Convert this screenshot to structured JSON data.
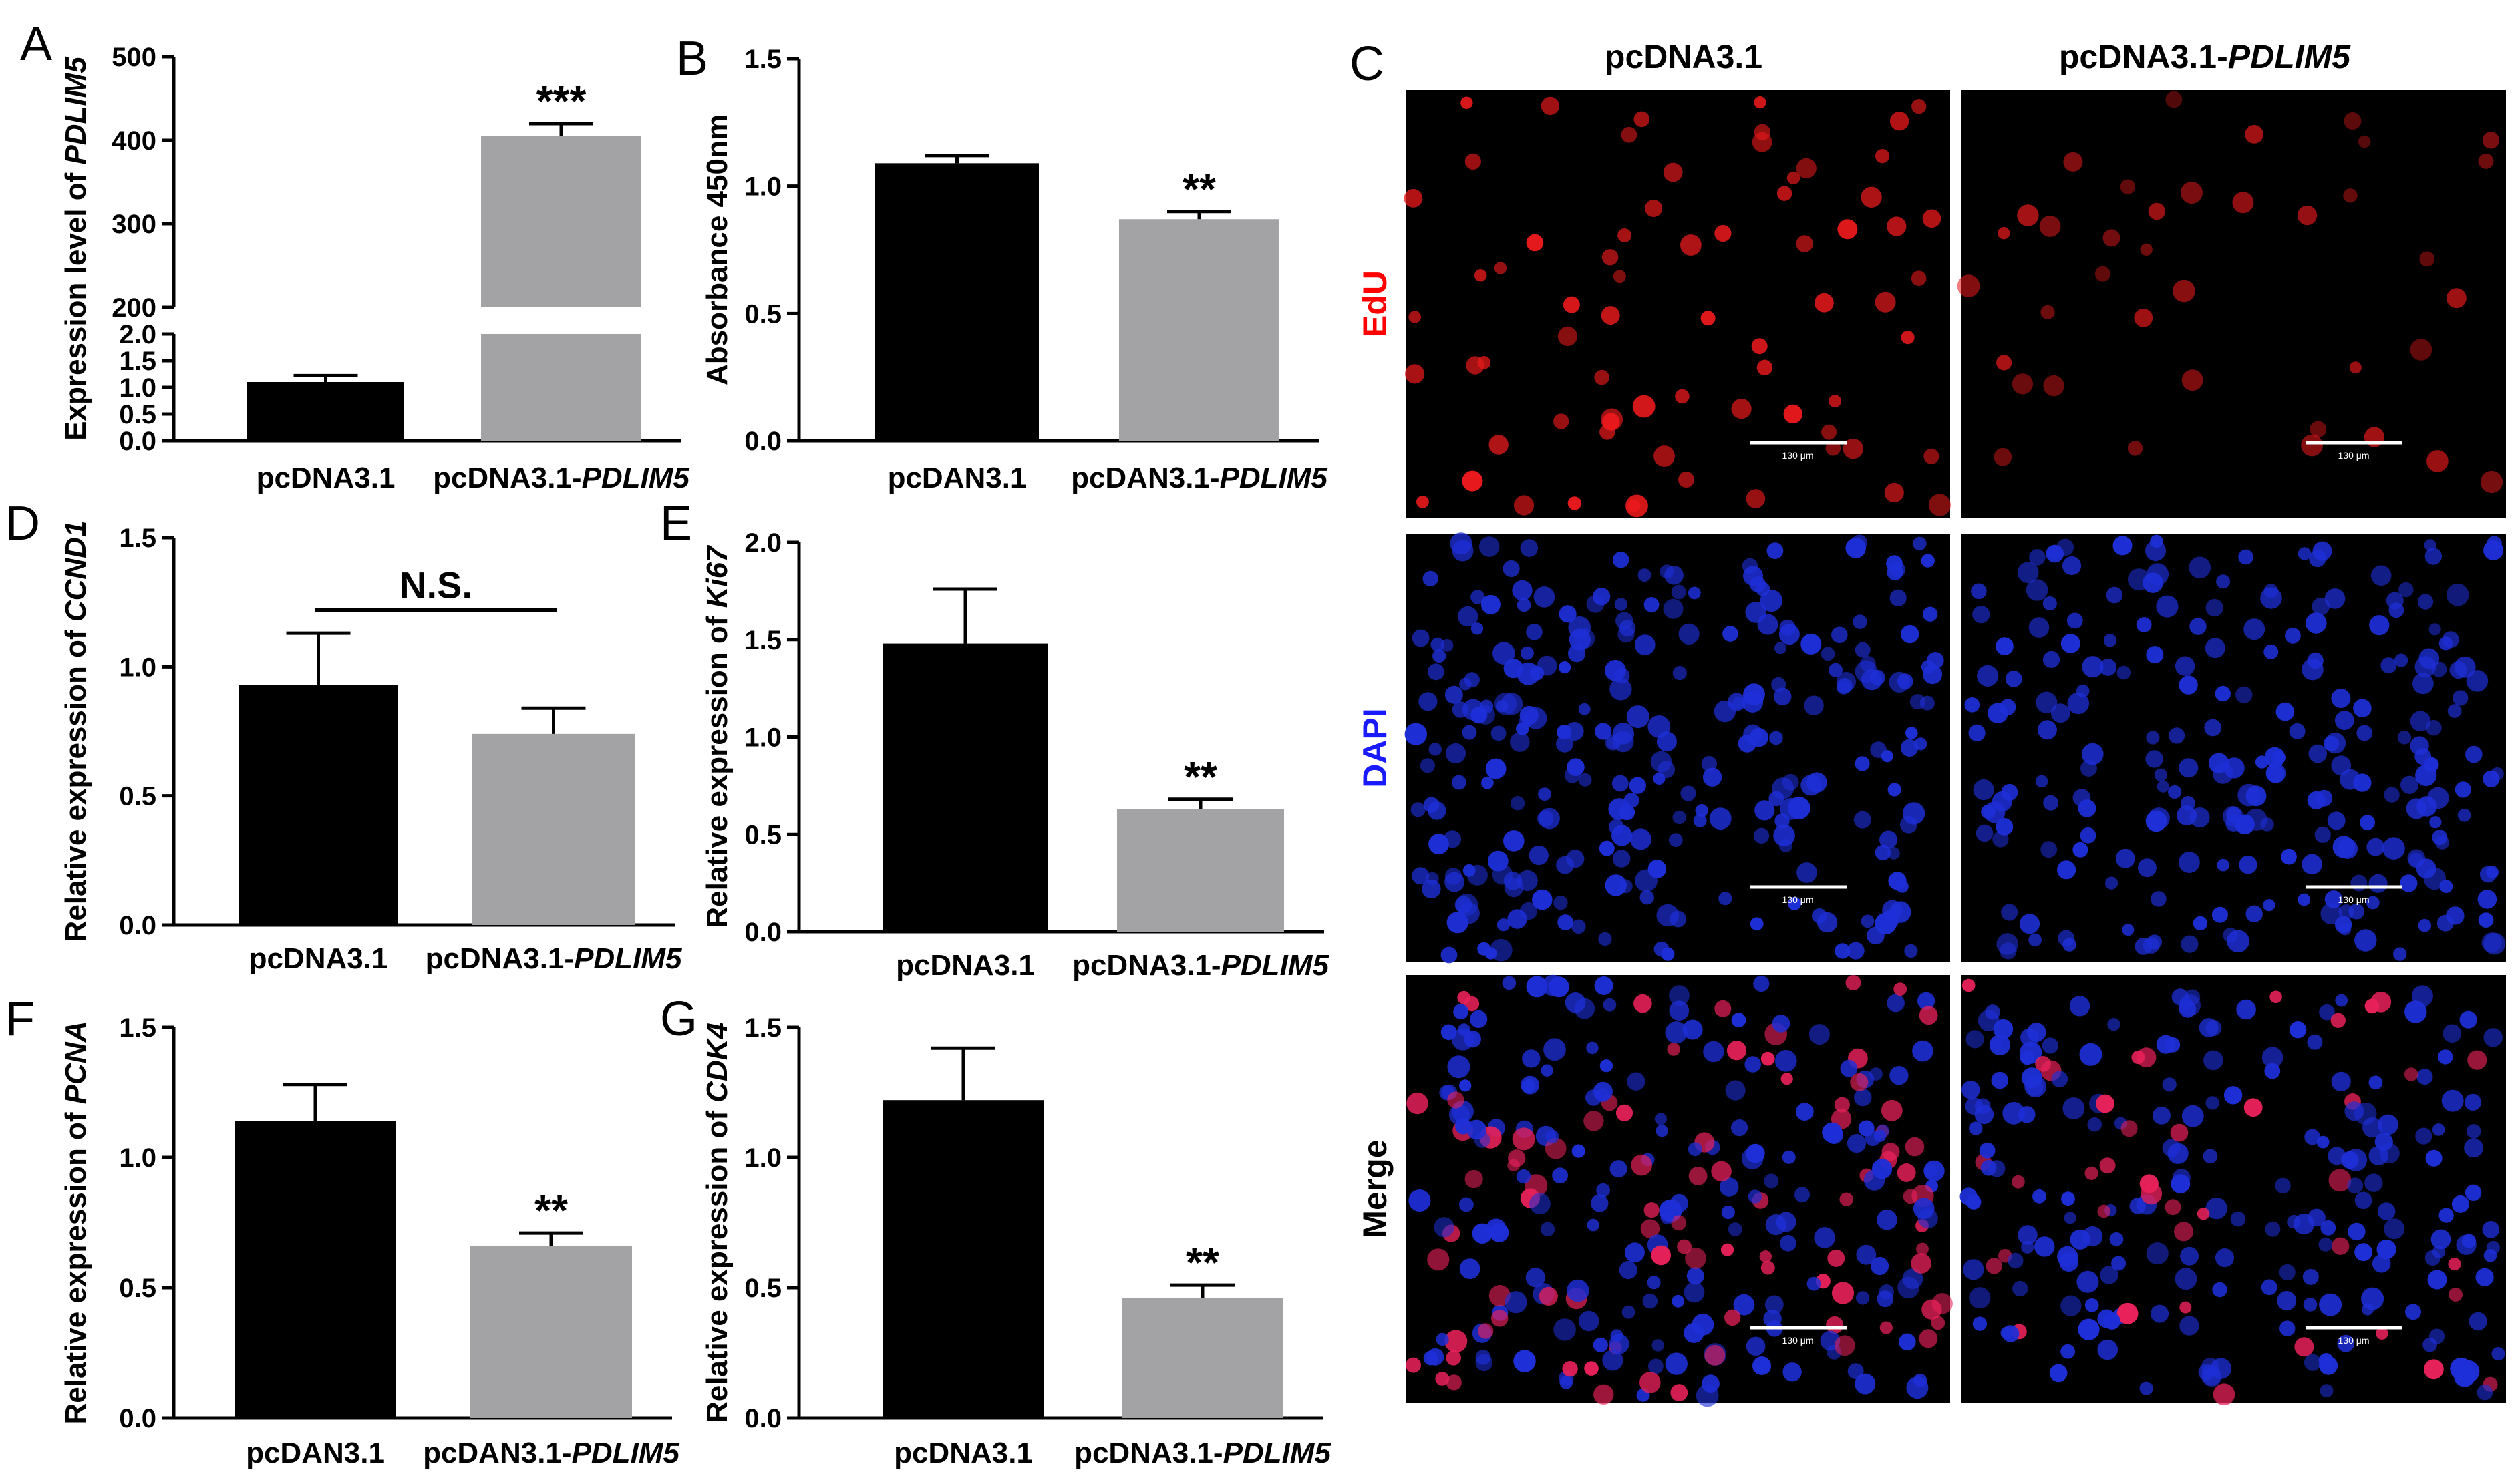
{
  "chart_data": [
    {
      "panel": "A",
      "type": "bar",
      "categories": [
        "pcDNA3.1",
        "pcDNA3.1-PDLIM5"
      ],
      "categories_italic": [
        null,
        "PDLIM5"
      ],
      "values": [
        1.1,
        405
      ],
      "errors": [
        0.12,
        15
      ],
      "ylabel": "Expression level of PDLIM5",
      "ylabel_italic": "PDLIM5",
      "axis_break": {
        "lower": {
          "range": [
            0,
            2.0
          ],
          "ticks": [
            "0.0",
            "0.5",
            "1.0",
            "1.5",
            "2.0"
          ]
        },
        "upper": {
          "range": [
            200,
            500
          ],
          "ticks": [
            "200",
            "300",
            "400",
            "500"
          ]
        }
      },
      "significance": [
        "",
        "***"
      ]
    },
    {
      "panel": "B",
      "type": "bar",
      "categories": [
        "pcDAN3.1",
        "pcDAN3.1-PDLIM5"
      ],
      "categories_italic": [
        null,
        "PDLIM5"
      ],
      "values": [
        1.09,
        0.87
      ],
      "errors": [
        0.03,
        0.03
      ],
      "ylabel": "Absorbance 450nm",
      "ylim": [
        0,
        1.5
      ],
      "yticks": [
        "0.0",
        "0.5",
        "1.0",
        "1.5"
      ],
      "significance": [
        "",
        "**"
      ]
    },
    {
      "panel": "D",
      "type": "bar",
      "categories": [
        "pcDNA3.1",
        "pcDNA3.1-PDLIM5"
      ],
      "categories_italic": [
        null,
        "PDLIM5"
      ],
      "values": [
        0.93,
        0.74
      ],
      "errors": [
        0.2,
        0.1
      ],
      "ylabel": "Relative expression of CCND1",
      "ylabel_italic": "CCND1",
      "ylim": [
        0,
        1.5
      ],
      "yticks": [
        "0.0",
        "0.5",
        "1.0",
        "1.5"
      ],
      "comparison_label": "N.S."
    },
    {
      "panel": "E",
      "type": "bar",
      "categories": [
        "pcDNA3.1",
        "pcDNA3.1-PDLIM5"
      ],
      "categories_italic": [
        null,
        "PDLIM5"
      ],
      "values": [
        1.48,
        0.63
      ],
      "errors": [
        0.28,
        0.05
      ],
      "ylabel": "Relative expression of Ki67",
      "ylabel_italic": "Ki67",
      "ylim": [
        0,
        2.0
      ],
      "yticks": [
        "0.0",
        "0.5",
        "1.0",
        "1.5",
        "2.0"
      ],
      "significance": [
        "",
        "**"
      ]
    },
    {
      "panel": "F",
      "type": "bar",
      "categories": [
        "pcDAN3.1",
        "pcDAN3.1-PDLIM5"
      ],
      "categories_italic": [
        null,
        "PDLIM5"
      ],
      "values": [
        1.14,
        0.66
      ],
      "errors": [
        0.14,
        0.05
      ],
      "ylabel": "Relative expression of PCNA",
      "ylabel_italic": "PCNA",
      "ylim": [
        0,
        1.5
      ],
      "yticks": [
        "0.0",
        "0.5",
        "1.0",
        "1.5"
      ],
      "significance": [
        "",
        "**"
      ]
    },
    {
      "panel": "G",
      "type": "bar",
      "categories": [
        "pcDNA3.1",
        "pcDNA3.1-PDLIM5"
      ],
      "categories_italic": [
        null,
        "PDLIM5"
      ],
      "values": [
        1.22,
        0.46
      ],
      "errors": [
        0.2,
        0.05
      ],
      "ylabel": "Relative expression of CDK4",
      "ylabel_italic": "CDK4",
      "ylim": [
        0,
        1.5
      ],
      "yticks": [
        "0.0",
        "0.5",
        "1.0",
        "1.5"
      ],
      "significance": [
        "",
        "**"
      ]
    }
  ],
  "panel_c": {
    "letter": "C",
    "columns": [
      "pcDNA3.1",
      "pcDNA3.1-PDLIM5"
    ],
    "columns_italic": [
      null,
      "PDLIM5"
    ],
    "rows": [
      "EdU",
      "DAPI",
      "Merge"
    ],
    "scale_bar": "130 μm"
  },
  "colors": {
    "control_bar": "#000000",
    "treatment_bar": "#a3a3a6",
    "edu_label": "#ff0000",
    "dapi_label": "#1a1aff",
    "merge_label": "#000000",
    "edu_nuclei": "#e8191c",
    "dapi_nuclei": "#1e2fd8",
    "merge_nuclei": "#e8215a"
  }
}
